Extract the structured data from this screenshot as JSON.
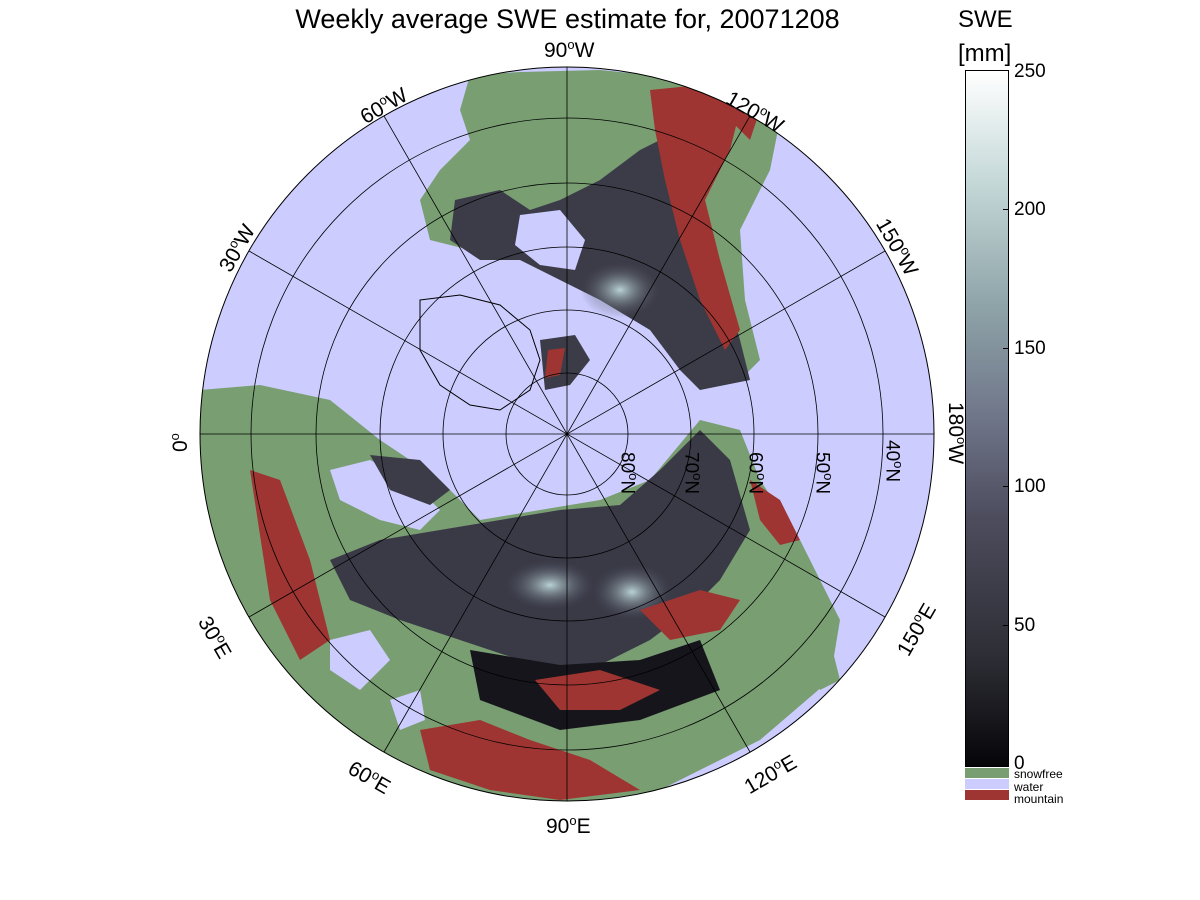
{
  "title": "Weekly average SWE estimate for, 20071208",
  "colorbar": {
    "title": "SWE",
    "unit": "[mm]",
    "ticks": [
      "250",
      "200",
      "150",
      "100",
      "50",
      "0"
    ],
    "range": [
      0,
      250
    ]
  },
  "legend": [
    {
      "label": "snowfree",
      "color": "#789e72"
    },
    {
      "label": "water",
      "color": "#ccccff"
    },
    {
      "label": "mountain",
      "color": "#9e3532"
    }
  ],
  "longitude_labels": {
    "w90": {
      "deg": "90",
      "dir": "W"
    },
    "w120": {
      "deg": "120",
      "dir": "W"
    },
    "w60": {
      "deg": "60",
      "dir": "W"
    },
    "w150": {
      "deg": "150",
      "dir": "W"
    },
    "w30": {
      "deg": "30",
      "dir": "W"
    },
    "zero": {
      "deg": "0",
      "dir": ""
    },
    "w180": {
      "deg": "180",
      "dir": "W"
    },
    "e30": {
      "deg": "30",
      "dir": "E"
    },
    "e150": {
      "deg": "150",
      "dir": "E"
    },
    "e60": {
      "deg": "60",
      "dir": "E"
    },
    "e120": {
      "deg": "120",
      "dir": "E"
    },
    "e90": {
      "deg": "90",
      "dir": "E"
    }
  },
  "latitude_labels": {
    "n80": {
      "deg": "80",
      "dir": "N"
    },
    "n70": {
      "deg": "70",
      "dir": "N"
    },
    "n60": {
      "deg": "60",
      "dir": "N"
    },
    "n50": {
      "deg": "50",
      "dir": "N"
    },
    "n40": {
      "deg": "40",
      "dir": "N"
    }
  }
}
